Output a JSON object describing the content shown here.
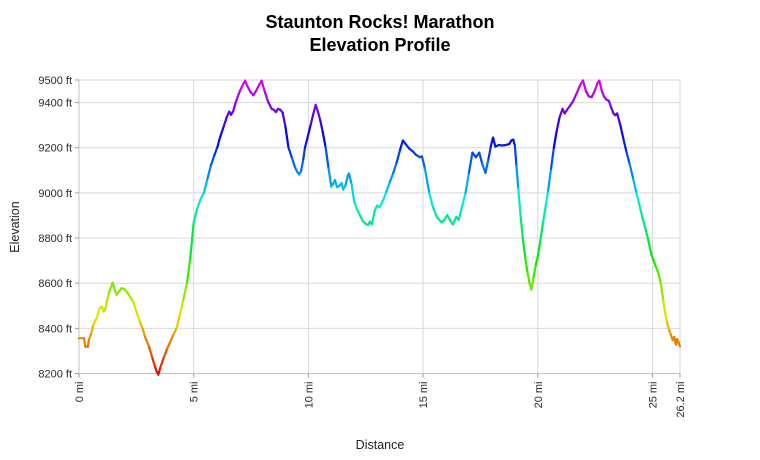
{
  "title": {
    "line1": "Staunton Rocks! Marathon",
    "line2": "Elevation Profile"
  },
  "axes": {
    "y_label": "Elevation",
    "x_label": "Distance",
    "y_ticks": [
      {
        "value": 9500,
        "label": "9500 ft"
      },
      {
        "value": 9400,
        "label": "9400 ft"
      },
      {
        "value": 9200,
        "label": "9200 ft"
      },
      {
        "value": 9000,
        "label": "9000 ft"
      },
      {
        "value": 8800,
        "label": "8800 ft"
      },
      {
        "value": 8600,
        "label": "8600 ft"
      },
      {
        "value": 8400,
        "label": "8400 ft"
      },
      {
        "value": 8200,
        "label": "8200 ft"
      }
    ],
    "x_ticks": [
      {
        "value": 0,
        "label": "0 mi"
      },
      {
        "value": 5,
        "label": "5 mi"
      },
      {
        "value": 10,
        "label": "10 mi"
      },
      {
        "value": 15,
        "label": "15 mi"
      },
      {
        "value": 20,
        "label": "20 mi"
      },
      {
        "value": 25,
        "label": "25 mi"
      },
      {
        "value": 26.2,
        "label": "26.2 mi"
      }
    ]
  },
  "style": {
    "background": "#ffffff",
    "grid_color": "#d9d9d9",
    "axis_color": "#c2c2c2",
    "tick_color": "#9a9a9a",
    "label_color": "#2a2a2a",
    "title_color": "#000000",
    "tick_font_size": 11,
    "line_width": 2.2,
    "colormap": {
      "min_ft": 8200,
      "max_ft": 9500,
      "hue_min": 0,
      "hue_max": 300,
      "sat": "98%",
      "light": "46%"
    }
  },
  "chart_data": {
    "type": "line",
    "title": "Staunton Rocks! Marathon Elevation Profile",
    "xlabel": "Distance",
    "ylabel": "Elevation",
    "x_unit": "mi",
    "y_unit": "ft",
    "xlim": [
      0,
      26.2
    ],
    "ylim": [
      8200,
      9500
    ],
    "grid": true,
    "legend": "none",
    "color_mapping": "line colored by elevation: rainbow from red at 8200 ft to magenta at 9500 ft",
    "series": [
      {
        "name": "elevation-profile",
        "points": [
          [
            0,
            8356
          ],
          [
            0.22,
            8356
          ],
          [
            0.27,
            8320
          ],
          [
            0.38,
            8318
          ],
          [
            0.44,
            8352
          ],
          [
            0.55,
            8382
          ],
          [
            0.62,
            8415
          ],
          [
            0.77,
            8445
          ],
          [
            0.9,
            8490
          ],
          [
            1.0,
            8496
          ],
          [
            1.07,
            8474
          ],
          [
            1.13,
            8480
          ],
          [
            1.3,
            8556
          ],
          [
            1.42,
            8588
          ],
          [
            1.47,
            8602
          ],
          [
            1.56,
            8572
          ],
          [
            1.64,
            8548
          ],
          [
            1.75,
            8564
          ],
          [
            1.86,
            8578
          ],
          [
            2.0,
            8572
          ],
          [
            2.1,
            8560
          ],
          [
            2.22,
            8540
          ],
          [
            2.37,
            8517
          ],
          [
            2.51,
            8472
          ],
          [
            2.66,
            8427
          ],
          [
            2.78,
            8398
          ],
          [
            2.88,
            8362
          ],
          [
            3.06,
            8317
          ],
          [
            3.2,
            8268
          ],
          [
            3.32,
            8228
          ],
          [
            3.4,
            8206
          ],
          [
            3.46,
            8195
          ],
          [
            3.55,
            8228
          ],
          [
            3.7,
            8272
          ],
          [
            3.85,
            8312
          ],
          [
            4.0,
            8345
          ],
          [
            4.13,
            8374
          ],
          [
            4.26,
            8402
          ],
          [
            4.4,
            8462
          ],
          [
            4.55,
            8528
          ],
          [
            4.71,
            8602
          ],
          [
            4.85,
            8712
          ],
          [
            5.0,
            8868
          ],
          [
            5.15,
            8930
          ],
          [
            5.3,
            8972
          ],
          [
            5.45,
            9002
          ],
          [
            5.6,
            9062
          ],
          [
            5.75,
            9122
          ],
          [
            5.9,
            9166
          ],
          [
            6.03,
            9202
          ],
          [
            6.15,
            9246
          ],
          [
            6.3,
            9292
          ],
          [
            6.45,
            9338
          ],
          [
            6.55,
            9360
          ],
          [
            6.63,
            9346
          ],
          [
            6.72,
            9362
          ],
          [
            6.85,
            9406
          ],
          [
            7.0,
            9448
          ],
          [
            7.1,
            9470
          ],
          [
            7.24,
            9497
          ],
          [
            7.35,
            9470
          ],
          [
            7.47,
            9448
          ],
          [
            7.6,
            9432
          ],
          [
            7.72,
            9452
          ],
          [
            7.85,
            9478
          ],
          [
            7.96,
            9497
          ],
          [
            8.1,
            9448
          ],
          [
            8.25,
            9402
          ],
          [
            8.4,
            9372
          ],
          [
            8.5,
            9368
          ],
          [
            8.58,
            9358
          ],
          [
            8.68,
            9372
          ],
          [
            8.78,
            9368
          ],
          [
            8.88,
            9355
          ],
          [
            9.0,
            9292
          ],
          [
            9.13,
            9202
          ],
          [
            9.28,
            9156
          ],
          [
            9.42,
            9112
          ],
          [
            9.52,
            9092
          ],
          [
            9.6,
            9082
          ],
          [
            9.68,
            9096
          ],
          [
            9.78,
            9150
          ],
          [
            9.85,
            9200
          ],
          [
            9.95,
            9240
          ],
          [
            10.1,
            9302
          ],
          [
            10.22,
            9352
          ],
          [
            10.32,
            9390
          ],
          [
            10.42,
            9358
          ],
          [
            10.52,
            9320
          ],
          [
            10.63,
            9268
          ],
          [
            10.75,
            9202
          ],
          [
            10.88,
            9108
          ],
          [
            11.0,
            9028
          ],
          [
            11.08,
            9040
          ],
          [
            11.16,
            9057
          ],
          [
            11.25,
            9025
          ],
          [
            11.35,
            9032
          ],
          [
            11.45,
            9043
          ],
          [
            11.52,
            9015
          ],
          [
            11.62,
            9035
          ],
          [
            11.72,
            9076
          ],
          [
            11.77,
            9086
          ],
          [
            11.88,
            9040
          ],
          [
            12.0,
            8960
          ],
          [
            12.12,
            8928
          ],
          [
            12.25,
            8900
          ],
          [
            12.38,
            8875
          ],
          [
            12.5,
            8862
          ],
          [
            12.6,
            8858
          ],
          [
            12.68,
            8872
          ],
          [
            12.76,
            8860
          ],
          [
            12.9,
            8924
          ],
          [
            13.0,
            8944
          ],
          [
            13.1,
            8936
          ],
          [
            13.25,
            8965
          ],
          [
            13.4,
            9005
          ],
          [
            13.55,
            9048
          ],
          [
            13.7,
            9088
          ],
          [
            13.85,
            9135
          ],
          [
            14.0,
            9192
          ],
          [
            14.12,
            9232
          ],
          [
            14.25,
            9215
          ],
          [
            14.4,
            9196
          ],
          [
            14.55,
            9184
          ],
          [
            14.7,
            9168
          ],
          [
            14.86,
            9158
          ],
          [
            14.95,
            9162
          ],
          [
            15.08,
            9108
          ],
          [
            15.27,
            9000
          ],
          [
            15.42,
            8940
          ],
          [
            15.6,
            8893
          ],
          [
            15.8,
            8870
          ],
          [
            15.92,
            8880
          ],
          [
            16.05,
            8902
          ],
          [
            16.18,
            8878
          ],
          [
            16.3,
            8860
          ],
          [
            16.45,
            8894
          ],
          [
            16.55,
            8880
          ],
          [
            16.7,
            8940
          ],
          [
            16.85,
            9000
          ],
          [
            17.0,
            9090
          ],
          [
            17.15,
            9178
          ],
          [
            17.3,
            9158
          ],
          [
            17.45,
            9178
          ],
          [
            17.58,
            9128
          ],
          [
            17.72,
            9088
          ],
          [
            17.85,
            9150
          ],
          [
            17.95,
            9205
          ],
          [
            18.05,
            9245
          ],
          [
            18.15,
            9205
          ],
          [
            18.3,
            9212
          ],
          [
            18.45,
            9210
          ],
          [
            18.6,
            9212
          ],
          [
            18.75,
            9216
          ],
          [
            18.85,
            9232
          ],
          [
            18.93,
            9236
          ],
          [
            19.0,
            9210
          ],
          [
            19.07,
            9120
          ],
          [
            19.15,
            9020
          ],
          [
            19.25,
            8898
          ],
          [
            19.35,
            8798
          ],
          [
            19.45,
            8716
          ],
          [
            19.55,
            8648
          ],
          [
            19.65,
            8595
          ],
          [
            19.72,
            8572
          ],
          [
            19.82,
            8628
          ],
          [
            19.92,
            8684
          ],
          [
            20.0,
            8718
          ],
          [
            20.1,
            8780
          ],
          [
            20.22,
            8862
          ],
          [
            20.35,
            8945
          ],
          [
            20.45,
            9010
          ],
          [
            20.58,
            9108
          ],
          [
            20.7,
            9200
          ],
          [
            20.82,
            9272
          ],
          [
            20.95,
            9335
          ],
          [
            21.08,
            9372
          ],
          [
            21.17,
            9352
          ],
          [
            21.27,
            9367
          ],
          [
            21.42,
            9388
          ],
          [
            21.55,
            9408
          ],
          [
            21.7,
            9442
          ],
          [
            21.85,
            9478
          ],
          [
            21.97,
            9498
          ],
          [
            22.1,
            9450
          ],
          [
            22.22,
            9428
          ],
          [
            22.35,
            9424
          ],
          [
            22.5,
            9456
          ],
          [
            22.62,
            9490
          ],
          [
            22.68,
            9497
          ],
          [
            22.8,
            9448
          ],
          [
            22.9,
            9425
          ],
          [
            23.0,
            9412
          ],
          [
            23.1,
            9408
          ],
          [
            23.2,
            9378
          ],
          [
            23.3,
            9352
          ],
          [
            23.38,
            9344
          ],
          [
            23.46,
            9352
          ],
          [
            23.6,
            9300
          ],
          [
            23.73,
            9240
          ],
          [
            23.87,
            9180
          ],
          [
            24.0,
            9130
          ],
          [
            24.16,
            9062
          ],
          [
            24.3,
            9000
          ],
          [
            24.42,
            8952
          ],
          [
            24.55,
            8895
          ],
          [
            24.68,
            8848
          ],
          [
            24.8,
            8798
          ],
          [
            24.95,
            8728
          ],
          [
            25.05,
            8700
          ],
          [
            25.15,
            8672
          ],
          [
            25.26,
            8645
          ],
          [
            25.36,
            8600
          ],
          [
            25.47,
            8525
          ],
          [
            25.55,
            8470
          ],
          [
            25.63,
            8428
          ],
          [
            25.73,
            8392
          ],
          [
            25.8,
            8372
          ],
          [
            25.88,
            8348
          ],
          [
            25.95,
            8362
          ],
          [
            26.02,
            8328
          ],
          [
            26.08,
            8352
          ],
          [
            26.2,
            8320
          ]
        ]
      }
    ]
  }
}
